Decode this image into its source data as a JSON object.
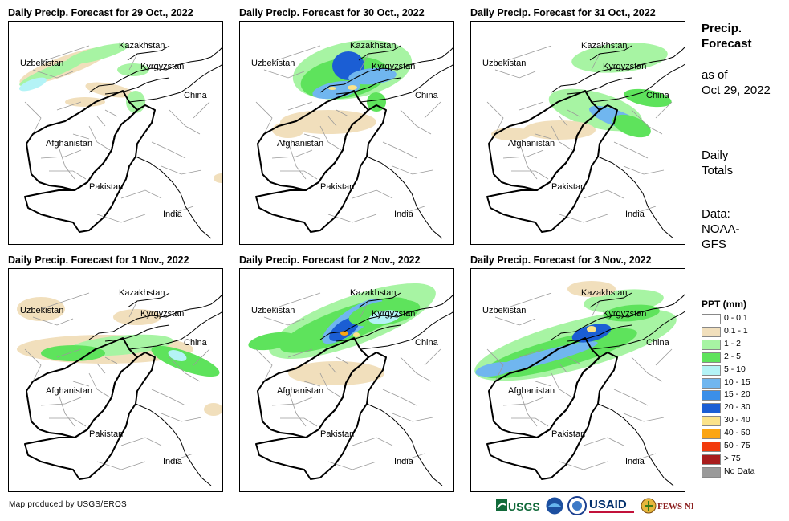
{
  "panels": [
    {
      "title": "Daily Precip. Forecast for 29 Oct., 2022",
      "blobs": [
        {
          "cx": 70,
          "cy": 55,
          "rx": 60,
          "ry": 12,
          "rot": -20,
          "c": "p1"
        },
        {
          "cx": 55,
          "cy": 62,
          "rx": 45,
          "ry": 7,
          "rot": -22,
          "c": "p2"
        },
        {
          "cx": 110,
          "cy": 40,
          "rx": 40,
          "ry": 8,
          "rot": -15,
          "c": "p2"
        },
        {
          "cx": 30,
          "cy": 78,
          "rx": 18,
          "ry": 6,
          "rot": -20,
          "c": "p5"
        },
        {
          "cx": 155,
          "cy": 60,
          "rx": 20,
          "ry": 8,
          "rot": 0,
          "c": "p2"
        },
        {
          "cx": 125,
          "cy": 85,
          "rx": 30,
          "ry": 8,
          "rot": 10,
          "c": "p1"
        },
        {
          "cx": 158,
          "cy": 100,
          "rx": 12,
          "ry": 14,
          "rot": 0,
          "c": "p2"
        },
        {
          "cx": 95,
          "cy": 100,
          "rx": 25,
          "ry": 6,
          "rot": 0,
          "c": "p1"
        },
        {
          "cx": 265,
          "cy": 195,
          "rx": 10,
          "ry": 6,
          "rot": 0,
          "c": "p1"
        }
      ]
    },
    {
      "title": "Daily Precip. Forecast for 30 Oct., 2022",
      "blobs": [
        {
          "cx": 140,
          "cy": 60,
          "rx": 75,
          "ry": 35,
          "rot": -10,
          "c": "p2"
        },
        {
          "cx": 130,
          "cy": 70,
          "rx": 55,
          "ry": 25,
          "rot": -10,
          "c": "p3"
        },
        {
          "cx": 135,
          "cy": 55,
          "rx": 20,
          "ry": 18,
          "rot": 0,
          "c": "p7"
        },
        {
          "cx": 120,
          "cy": 85,
          "rx": 30,
          "ry": 10,
          "rot": -10,
          "c": "p6"
        },
        {
          "cx": 140,
          "cy": 82,
          "rx": 6,
          "ry": 3,
          "rot": 0,
          "c": "p9"
        },
        {
          "cx": 115,
          "cy": 83,
          "rx": 5,
          "ry": 2,
          "rot": 0,
          "c": "p9"
        },
        {
          "cx": 165,
          "cy": 68,
          "rx": 30,
          "ry": 10,
          "rot": -5,
          "c": "p6"
        },
        {
          "cx": 170,
          "cy": 100,
          "rx": 12,
          "ry": 12,
          "rot": 0,
          "c": "p3"
        },
        {
          "cx": 110,
          "cy": 125,
          "rx": 60,
          "ry": 15,
          "rot": 0,
          "c": "p1"
        },
        {
          "cx": 60,
          "cy": 135,
          "rx": 20,
          "ry": 10,
          "rot": 0,
          "c": "p1"
        }
      ]
    },
    {
      "title": "Daily Precip. Forecast for 31 Oct., 2022",
      "blobs": [
        {
          "cx": 185,
          "cy": 45,
          "rx": 60,
          "ry": 18,
          "rot": -5,
          "c": "p2"
        },
        {
          "cx": 155,
          "cy": 110,
          "rx": 60,
          "ry": 22,
          "rot": 15,
          "c": "p2"
        },
        {
          "cx": 180,
          "cy": 120,
          "rx": 35,
          "ry": 10,
          "rot": 20,
          "c": "p6"
        },
        {
          "cx": 200,
          "cy": 130,
          "rx": 25,
          "ry": 12,
          "rot": 20,
          "c": "p3"
        },
        {
          "cx": 110,
          "cy": 135,
          "rx": 45,
          "ry": 12,
          "rot": 0,
          "c": "p1"
        },
        {
          "cx": 220,
          "cy": 95,
          "rx": 30,
          "ry": 10,
          "rot": 10,
          "c": "p3"
        },
        {
          "cx": 50,
          "cy": 140,
          "rx": 25,
          "ry": 8,
          "rot": 0,
          "c": "p1"
        }
      ]
    },
    {
      "title": "Daily Precip. Forecast for 1 Nov., 2022",
      "blobs": [
        {
          "cx": 120,
          "cy": 100,
          "rx": 110,
          "ry": 18,
          "rot": 0,
          "c": "p1"
        },
        {
          "cx": 140,
          "cy": 95,
          "rx": 65,
          "ry": 12,
          "rot": -5,
          "c": "p2"
        },
        {
          "cx": 220,
          "cy": 115,
          "rx": 45,
          "ry": 12,
          "rot": 20,
          "c": "p3"
        },
        {
          "cx": 210,
          "cy": 108,
          "rx": 12,
          "ry": 6,
          "rot": 20,
          "c": "p5"
        },
        {
          "cx": 80,
          "cy": 105,
          "rx": 40,
          "ry": 10,
          "rot": 0,
          "c": "p3"
        },
        {
          "cx": 40,
          "cy": 50,
          "rx": 30,
          "ry": 15,
          "rot": 0,
          "c": "p1"
        },
        {
          "cx": 160,
          "cy": 60,
          "rx": 30,
          "ry": 10,
          "rot": 0,
          "c": "p1"
        },
        {
          "cx": 255,
          "cy": 175,
          "rx": 12,
          "ry": 8,
          "rot": 0,
          "c": "p1"
        }
      ]
    },
    {
      "title": "Daily Precip. Forecast for 2 Nov., 2022",
      "blobs": [
        {
          "cx": 140,
          "cy": 65,
          "rx": 110,
          "ry": 30,
          "rot": -20,
          "c": "p2"
        },
        {
          "cx": 130,
          "cy": 70,
          "rx": 85,
          "ry": 20,
          "rot": -20,
          "c": "p3"
        },
        {
          "cx": 140,
          "cy": 65,
          "rx": 45,
          "ry": 14,
          "rot": -35,
          "c": "p6"
        },
        {
          "cx": 130,
          "cy": 75,
          "rx": 22,
          "ry": 10,
          "rot": -35,
          "c": "p7"
        },
        {
          "cx": 150,
          "cy": 55,
          "rx": 6,
          "ry": 4,
          "rot": 0,
          "c": "p9"
        },
        {
          "cx": 130,
          "cy": 80,
          "rx": 5,
          "ry": 3,
          "rot": 0,
          "c": "p10"
        },
        {
          "cx": 145,
          "cy": 82,
          "rx": 4,
          "ry": 3,
          "rot": 0,
          "c": "p9"
        },
        {
          "cx": 180,
          "cy": 55,
          "rx": 45,
          "ry": 15,
          "rot": -10,
          "c": "p3"
        },
        {
          "cx": 180,
          "cy": 60,
          "rx": 20,
          "ry": 8,
          "rot": -10,
          "c": "p5"
        },
        {
          "cx": 120,
          "cy": 130,
          "rx": 60,
          "ry": 15,
          "rot": 0,
          "c": "p1"
        },
        {
          "cx": 40,
          "cy": 90,
          "rx": 30,
          "ry": 10,
          "rot": -10,
          "c": "p3"
        }
      ]
    },
    {
      "title": "Daily Precip. Forecast for 3 Nov., 2022",
      "blobs": [
        {
          "cx": 130,
          "cy": 95,
          "rx": 130,
          "ry": 30,
          "rot": -15,
          "c": "p2"
        },
        {
          "cx": 110,
          "cy": 105,
          "rx": 100,
          "ry": 18,
          "rot": -15,
          "c": "p3"
        },
        {
          "cx": 90,
          "cy": 110,
          "rx": 70,
          "ry": 8,
          "rot": -15,
          "c": "p6"
        },
        {
          "cx": 150,
          "cy": 80,
          "rx": 25,
          "ry": 10,
          "rot": -15,
          "c": "p7"
        },
        {
          "cx": 150,
          "cy": 75,
          "rx": 6,
          "ry": 4,
          "rot": 0,
          "c": "p9"
        },
        {
          "cx": 190,
          "cy": 40,
          "rx": 50,
          "ry": 14,
          "rot": -5,
          "c": "p2"
        },
        {
          "cx": 200,
          "cy": 55,
          "rx": 35,
          "ry": 10,
          "rot": -5,
          "c": "p3"
        },
        {
          "cx": 150,
          "cy": 25,
          "rx": 30,
          "ry": 10,
          "rot": 0,
          "c": "p1"
        },
        {
          "cx": 30,
          "cy": 125,
          "rx": 25,
          "ry": 8,
          "rot": -10,
          "c": "p6"
        }
      ]
    }
  ],
  "map_labels": {
    "kazakhstan": "Kazakhstan",
    "uzbekistan": "Uzbekistan",
    "kyrgyzstan": "Kyrgyzstan",
    "china": "China",
    "afghanistan": "Afghanistan",
    "pakistan": "Pakistan",
    "india": "India"
  },
  "sidebar": {
    "title_line1": "Precip.",
    "title_line2": "Forecast",
    "asof_line1": "as of",
    "asof_line2": "Oct 29, 2022",
    "daily_line1": "Daily",
    "daily_line2": "Totals",
    "data_line1": "Data:",
    "data_line2": "NOAA-",
    "data_line3": "GFS"
  },
  "legend": {
    "title": "PPT (mm)",
    "items": [
      {
        "label": "0 - 0.1",
        "color": "#ffffff"
      },
      {
        "label": "0.1 - 1",
        "color": "#f1dfbc"
      },
      {
        "label": "1 - 2",
        "color": "#a7f4a3"
      },
      {
        "label": "2 - 5",
        "color": "#5ee35c"
      },
      {
        "label": "5 - 10",
        "color": "#b4f3f6"
      },
      {
        "label": "10 - 15",
        "color": "#70b6ef"
      },
      {
        "label": "15 - 20",
        "color": "#3b8fe8"
      },
      {
        "label": "20 - 30",
        "color": "#1b5ed4"
      },
      {
        "label": "30 - 40",
        "color": "#fbe38a"
      },
      {
        "label": "40 - 50",
        "color": "#fba514"
      },
      {
        "label": "50 - 75",
        "color": "#f23a0c"
      },
      {
        "label": "> 75",
        "color": "#a81c1c"
      },
      {
        "label": "No Data",
        "color": "#9a9a9a"
      }
    ]
  },
  "credit": "Map produced by USGS/EROS",
  "logos": {
    "usgs": "USGS",
    "usaid": "USAID",
    "fews": "FEWS NET"
  },
  "palette": {
    "p1": "#f1dfbc",
    "p2": "#a7f4a3",
    "p3": "#5ee35c",
    "p5": "#b4f3f6",
    "p6": "#70b6ef",
    "p7": "#1b5ed4",
    "p9": "#fbe38a",
    "p10": "#fba514"
  }
}
